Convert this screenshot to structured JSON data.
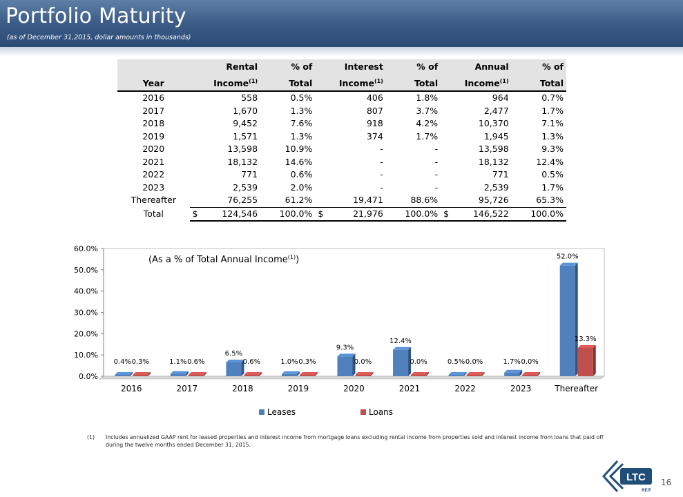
{
  "header": {
    "title": "Portfolio Maturity",
    "subtitle": "(as of December 31,2015, dollar amounts in thousands)"
  },
  "table": {
    "headers": {
      "year": "Year",
      "rental_top": "Rental",
      "rental_bottom": "Income",
      "rental_sup": "(1)",
      "pct1_top": "% of",
      "pct1_bottom": "Total",
      "interest_top": "Interest",
      "interest_bottom": "Income",
      "interest_sup": "(1)",
      "pct2_top": "% of",
      "pct2_bottom": "Total",
      "annual_top": "Annual",
      "annual_bottom": "Income",
      "annual_sup": "(1)",
      "pct3_top": "% of",
      "pct3_bottom": "Total"
    },
    "rows": [
      {
        "year": "2016",
        "rental": "558",
        "rental_pct": "0.5%",
        "interest": "406",
        "interest_pct": "1.8%",
        "annual": "964",
        "annual_pct": "0.7%"
      },
      {
        "year": "2017",
        "rental": "1,670",
        "rental_pct": "1.3%",
        "interest": "807",
        "interest_pct": "3.7%",
        "annual": "2,477",
        "annual_pct": "1.7%"
      },
      {
        "year": "2018",
        "rental": "9,452",
        "rental_pct": "7.6%",
        "interest": "918",
        "interest_pct": "4.2%",
        "annual": "10,370",
        "annual_pct": "7.1%"
      },
      {
        "year": "2019",
        "rental": "1,571",
        "rental_pct": "1.3%",
        "interest": "374",
        "interest_pct": "1.7%",
        "annual": "1,945",
        "annual_pct": "1.3%"
      },
      {
        "year": "2020",
        "rental": "13,598",
        "rental_pct": "10.9%",
        "interest": "-",
        "interest_pct": "-",
        "annual": "13,598",
        "annual_pct": "9.3%"
      },
      {
        "year": "2021",
        "rental": "18,132",
        "rental_pct": "14.6%",
        "interest": "-",
        "interest_pct": "-",
        "annual": "18,132",
        "annual_pct": "12.4%"
      },
      {
        "year": "2022",
        "rental": "771",
        "rental_pct": "0.6%",
        "interest": "-",
        "interest_pct": "-",
        "annual": "771",
        "annual_pct": "0.5%"
      },
      {
        "year": "2023",
        "rental": "2,539",
        "rental_pct": "2.0%",
        "interest": "-",
        "interest_pct": "-",
        "annual": "2,539",
        "annual_pct": "1.7%"
      },
      {
        "year": "Thereafter",
        "rental": "76,255",
        "rental_pct": "61.2%",
        "interest": "19,471",
        "interest_pct": "88.6%",
        "annual": "95,726",
        "annual_pct": "65.3%"
      }
    ],
    "total": {
      "year": "Total",
      "rental_currency": "$",
      "rental": "124,546",
      "rental_pct": "100.0%",
      "interest_currency": "$",
      "interest": "21,976",
      "interest_pct": "100.0%",
      "annual_currency": "$",
      "annual": "146,522",
      "annual_pct": "100.0%"
    }
  },
  "chart_data": {
    "type": "bar",
    "title": "(As a % of Total Annual Income",
    "title_sup": "(1)",
    "title_close": ")",
    "categories": [
      "2016",
      "2017",
      "2018",
      "2019",
      "2020",
      "2021",
      "2022",
      "2023",
      "Thereafter"
    ],
    "series": [
      {
        "name": "Leases",
        "color": "#4f81bd",
        "values": [
          0.4,
          1.1,
          6.5,
          1.0,
          9.3,
          12.4,
          0.5,
          1.7,
          52.0
        ],
        "labels": [
          "0.4%",
          "1.1%",
          "6.5%",
          "1.0%",
          "9.3%",
          "12.4%",
          "0.5%",
          "1.7%",
          "52.0%"
        ]
      },
      {
        "name": "Loans",
        "color": "#c0504d",
        "values": [
          0.3,
          0.6,
          0.6,
          0.3,
          0.0,
          0.0,
          0.0,
          0.0,
          13.3
        ],
        "labels": [
          "0.3%",
          "0.6%",
          "0.6%",
          "0.3%",
          "0.0%",
          "0.0%",
          "0.0%",
          "0.0%",
          "13.3%"
        ]
      }
    ],
    "yticks": [
      "0.0%",
      "10.0%",
      "20.0%",
      "30.0%",
      "40.0%",
      "50.0%",
      "60.0%"
    ],
    "ylim": [
      0,
      60
    ],
    "grid": false,
    "legend_position": "bottom"
  },
  "footnote": {
    "number": "(1)",
    "text": "Includes annualized GAAP rent for leased properties and interest income from mortgage loans excluding rental income from properties sold and interest income from loans that paid off during the twelve months ended December 31, 2015."
  },
  "page_number": "16",
  "logo": {
    "text": "LTC",
    "subtext": "REIT",
    "color": "#1f4e79"
  }
}
